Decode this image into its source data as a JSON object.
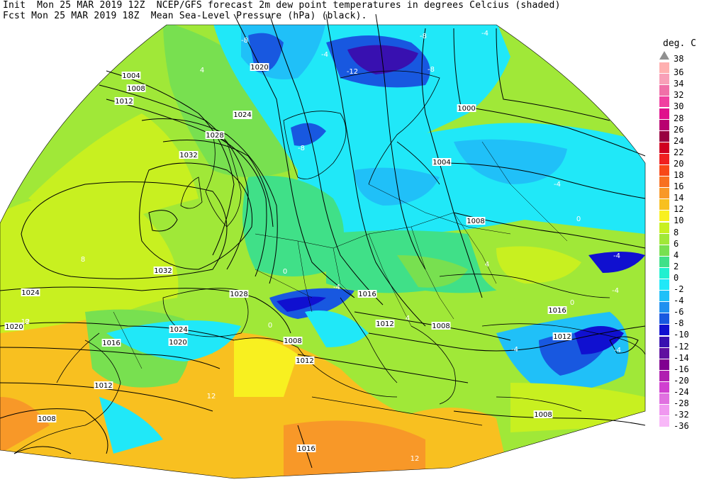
{
  "header": {
    "line1": "Init  Mon 25 MAR 2019 12Z  NCEP/GFS forecast 2m dew point temperatures in degrees Celcius (shaded)",
    "line2": "Fcst Mon 25 MAR 2019 18Z  Mean Sea-Level Pressure (hPa) (black)."
  },
  "legend": {
    "unit": "deg. C",
    "levels": [
      {
        "label": "38",
        "color": "#909090"
      },
      {
        "label": "36",
        "color": "#ffb0b0"
      },
      {
        "label": "34",
        "color": "#f8a0b8"
      },
      {
        "label": "32",
        "color": "#f070a8"
      },
      {
        "label": "30",
        "color": "#f040a0"
      },
      {
        "label": "28",
        "color": "#e0108c"
      },
      {
        "label": "26",
        "color": "#b80070"
      },
      {
        "label": "24",
        "color": "#980040"
      },
      {
        "label": "22",
        "color": "#d00020"
      },
      {
        "label": "20",
        "color": "#f02020"
      },
      {
        "label": "18",
        "color": "#f84818"
      },
      {
        "label": "16",
        "color": "#f87020"
      },
      {
        "label": "14",
        "color": "#f89828"
      },
      {
        "label": "12",
        "color": "#f8c020"
      },
      {
        "label": "10",
        "color": "#f8f020"
      },
      {
        "label": "8",
        "color": "#c8f020"
      },
      {
        "label": "6",
        "color": "#a0e838"
      },
      {
        "label": "4",
        "color": "#78e050"
      },
      {
        "label": "2",
        "color": "#40e088"
      },
      {
        "label": "0",
        "color": "#20f0d0"
      },
      {
        "label": "-2",
        "color": "#20e8f8"
      },
      {
        "label": "-4",
        "color": "#20c0f8"
      },
      {
        "label": "-6",
        "color": "#2090f0"
      },
      {
        "label": "-8",
        "color": "#1858e0"
      },
      {
        "label": "-10",
        "color": "#1010d0"
      },
      {
        "label": "-12",
        "color": "#3810b0"
      },
      {
        "label": "-14",
        "color": "#6010a0"
      },
      {
        "label": "-16",
        "color": "#800090"
      },
      {
        "label": "-20",
        "color": "#b020b0"
      },
      {
        "label": "-24",
        "color": "#d040d0"
      },
      {
        "label": "-28",
        "color": "#e070e0"
      },
      {
        "label": "-32",
        "color": "#f098f0"
      },
      {
        "label": "-36",
        "color": "#f8b8f8"
      }
    ]
  },
  "map": {
    "isobar_labels": [
      {
        "text": "1004"
      },
      {
        "text": "1008"
      },
      {
        "text": "1012"
      },
      {
        "text": "1024"
      },
      {
        "text": "1028"
      },
      {
        "text": "1032"
      },
      {
        "text": "1032"
      },
      {
        "text": "1024"
      },
      {
        "text": "1020"
      },
      {
        "text": "1016"
      },
      {
        "text": "1012"
      },
      {
        "text": "1008"
      },
      {
        "text": "1028"
      },
      {
        "text": "1024"
      },
      {
        "text": "1020"
      },
      {
        "text": "1008"
      },
      {
        "text": "1012"
      },
      {
        "text": "1016"
      },
      {
        "text": "1016"
      },
      {
        "text": "1012"
      },
      {
        "text": "1008"
      },
      {
        "text": "1004"
      },
      {
        "text": "1000"
      },
      {
        "text": "1008"
      },
      {
        "text": "1016"
      },
      {
        "text": "1012"
      },
      {
        "text": "1008"
      },
      {
        "text": "1020"
      },
      {
        "text": "1024"
      }
    ],
    "dewpoint_labels": [
      {
        "text": "-8"
      },
      {
        "text": "-8"
      },
      {
        "text": "-12"
      },
      {
        "text": "-4"
      },
      {
        "text": "-8"
      },
      {
        "text": "-4"
      },
      {
        "text": "-4"
      },
      {
        "text": "-4"
      },
      {
        "text": "-8"
      },
      {
        "text": "-4"
      },
      {
        "text": "-4"
      },
      {
        "text": "0"
      },
      {
        "text": "4"
      },
      {
        "text": "8"
      },
      {
        "text": "12"
      },
      {
        "text": "12"
      },
      {
        "text": "4"
      },
      {
        "text": "0"
      },
      {
        "text": "-4"
      },
      {
        "text": "-4"
      },
      {
        "text": "0"
      },
      {
        "text": "4"
      },
      {
        "text": "8"
      },
      {
        "text": "12"
      },
      {
        "text": "0"
      }
    ]
  }
}
